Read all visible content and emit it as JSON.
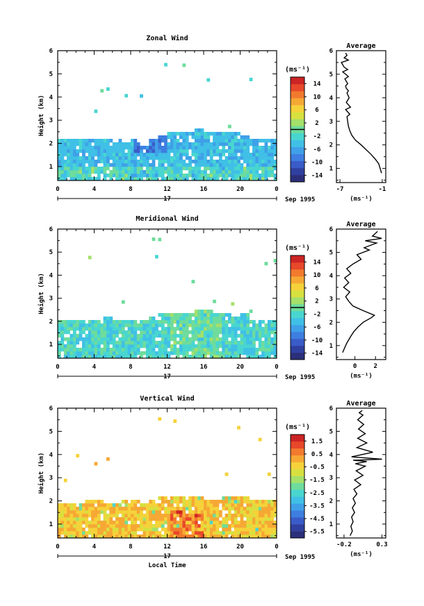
{
  "chart_data": [
    {
      "type": "heatmap",
      "title": "Zonal Wind",
      "xlabel": "",
      "ylabel": "Height (km)",
      "xlim": [
        0,
        24
      ],
      "ylim": [
        0.4,
        6
      ],
      "x_ticks": [
        "0",
        "4",
        "8",
        "12",
        "16",
        "20",
        "0"
      ],
      "y_ticks": [
        "1",
        "2",
        "3",
        "4",
        "5",
        "6"
      ],
      "date_bar": {
        "day": "17",
        "label": "Sep 1995"
      },
      "colorbar": {
        "unit": "(ms⁻¹)",
        "ticks": [
          "14",
          "10",
          "6",
          "2",
          "-2",
          "-6",
          "-10",
          "-14"
        ],
        "min": -16,
        "max": 16,
        "zero": 0
      },
      "data_top_km": [
        2.2,
        2.3,
        2.2,
        2.2,
        2.3,
        2.2,
        2.2,
        2.1,
        2.2,
        2.0,
        2.3,
        2.4,
        2.5,
        2.5,
        2.6,
        2.7,
        2.6,
        2.6,
        2.5,
        2.5,
        2.4,
        2.3,
        2.2,
        2.2
      ],
      "profile": {
        "title": "Average",
        "xlabel": "(ms⁻¹)",
        "x_ticks": [
          "-7",
          "-1"
        ],
        "xlim": [
          -7.5,
          -0.5
        ],
        "y_ticks": [
          "1",
          "2",
          "3",
          "4",
          "5",
          "6"
        ],
        "x": [
          -1.1,
          -1.3,
          -1.5,
          -2.0,
          -2.6,
          -3.3,
          -4.0,
          -4.8,
          -5.3,
          -5.6,
          -5.8,
          -5.9,
          -6.0,
          -5.6,
          -6.2,
          -5.5,
          -6.1,
          -5.7,
          -6.0,
          -5.8,
          -6.1,
          -6.2,
          -5.9,
          -6.3,
          -5.8,
          -6.2,
          -6.6,
          -5.9,
          -6.4,
          -6.8,
          -5.8,
          -6.4,
          -6.0,
          -6.2
        ],
        "y": [
          0.8,
          1.0,
          1.2,
          1.4,
          1.6,
          1.8,
          2.0,
          2.2,
          2.4,
          2.6,
          2.8,
          3.0,
          3.2,
          3.3,
          3.5,
          3.6,
          3.8,
          4.0,
          4.2,
          4.3,
          4.4,
          4.5,
          4.6,
          4.8,
          4.9,
          5.0,
          5.1,
          5.2,
          5.3,
          5.5,
          5.6,
          5.7,
          5.8,
          5.9
        ]
      }
    },
    {
      "type": "heatmap",
      "title": "Meridional Wind",
      "xlabel": "",
      "ylabel": "Height (km)",
      "xlim": [
        0,
        24
      ],
      "ylim": [
        0.4,
        6
      ],
      "x_ticks": [
        "0",
        "4",
        "8",
        "12",
        "16",
        "20",
        "0"
      ],
      "y_ticks": [
        "1",
        "2",
        "3",
        "4",
        "5",
        "6"
      ],
      "date_bar": {
        "day": "17",
        "label": "Sep 1995"
      },
      "colorbar": {
        "unit": "(ms⁻¹)",
        "ticks": [
          "14",
          "10",
          "6",
          "2",
          "-2",
          "-6",
          "-10",
          "-14"
        ],
        "min": -16,
        "max": 16,
        "zero": 0
      },
      "data_top_km": [
        2.2,
        2.1,
        2.1,
        2.2,
        2.2,
        2.3,
        2.1,
        2.2,
        2.2,
        2.1,
        2.3,
        2.4,
        2.4,
        2.5,
        2.5,
        2.6,
        2.6,
        2.5,
        2.4,
        2.3,
        2.4,
        2.2,
        2.2,
        2.2
      ],
      "profile": {
        "title": "Average",
        "xlabel": "(ms⁻¹)",
        "x_ticks": [
          "0",
          "2"
        ],
        "xlim": [
          -1.8,
          3.0
        ],
        "y_ticks": [
          "1",
          "2",
          "3",
          "4",
          "5",
          "6"
        ],
        "x": [
          -1.2,
          -1.0,
          -0.8,
          -0.4,
          -0.1,
          0.3,
          0.8,
          1.6,
          1.9,
          0.8,
          -0.2,
          -0.6,
          -0.9,
          -0.5,
          -1.1,
          -0.6,
          -1.0,
          -0.4,
          -0.8,
          -0.2,
          0.6,
          0.2,
          1.4,
          0.9,
          2.1,
          1.0,
          2.6,
          1.7,
          2.2
        ],
        "y": [
          0.7,
          0.9,
          1.1,
          1.4,
          1.6,
          1.8,
          2.0,
          2.2,
          2.3,
          2.5,
          2.7,
          2.9,
          3.1,
          3.3,
          3.5,
          3.7,
          3.9,
          4.1,
          4.3,
          4.5,
          4.7,
          4.9,
          5.1,
          5.2,
          5.4,
          5.5,
          5.6,
          5.7,
          5.9
        ]
      }
    },
    {
      "type": "heatmap",
      "title": "Vertical Wind",
      "xlabel": "Local Time",
      "ylabel": "Height (km)",
      "xlim": [
        0,
        24
      ],
      "ylim": [
        0.4,
        6
      ],
      "x_ticks": [
        "0",
        "4",
        "8",
        "12",
        "16",
        "20",
        "0"
      ],
      "y_ticks": [
        "1",
        "2",
        "3",
        "4",
        "5",
        "6"
      ],
      "date_bar": {
        "day": "17",
        "label": "Sep 1995"
      },
      "colorbar": {
        "unit": "(ms⁻¹)",
        "ticks": [
          "1.5",
          "0.5",
          "-0.5",
          "-1.5",
          "-2.5",
          "-3.5",
          "-4.5",
          "-5.5"
        ],
        "min": -6,
        "max": 2
      },
      "data_top_km": [
        1.9,
        2.0,
        2.0,
        2.1,
        2.1,
        2.0,
        2.0,
        2.1,
        2.1,
        2.0,
        2.1,
        2.2,
        2.2,
        2.3,
        2.2,
        2.2,
        2.1,
        2.1,
        2.2,
        2.2,
        2.2,
        2.1,
        2.1,
        2.1
      ],
      "profile": {
        "title": "Average",
        "xlabel": "(ms⁻¹)",
        "x_ticks": [
          "-0.2",
          "0.3"
        ],
        "xlim": [
          -0.3,
          0.35
        ],
        "y_ticks": [
          "1",
          "2",
          "3",
          "4",
          "5",
          "6"
        ],
        "x": [
          -0.12,
          -0.09,
          -0.11,
          -0.08,
          -0.1,
          -0.06,
          -0.09,
          -0.05,
          -0.08,
          -0.03,
          -0.07,
          0.02,
          -0.06,
          0.05,
          -0.04,
          0.08,
          -0.05,
          0.1,
          -0.08,
          0.3,
          -0.1,
          0.18,
          -0.03,
          0.1,
          -0.02,
          0.08,
          -0.01,
          0.06,
          -0.02,
          0.05,
          0.0,
          0.04
        ],
        "y": [
          0.5,
          0.7,
          0.9,
          1.1,
          1.3,
          1.5,
          1.7,
          1.9,
          2.1,
          2.3,
          2.5,
          2.7,
          2.9,
          3.1,
          3.3,
          3.5,
          3.6,
          3.7,
          3.75,
          3.8,
          3.9,
          4.1,
          4.3,
          4.5,
          4.7,
          4.9,
          5.1,
          5.3,
          5.5,
          5.7,
          5.8,
          5.9
        ]
      }
    }
  ]
}
